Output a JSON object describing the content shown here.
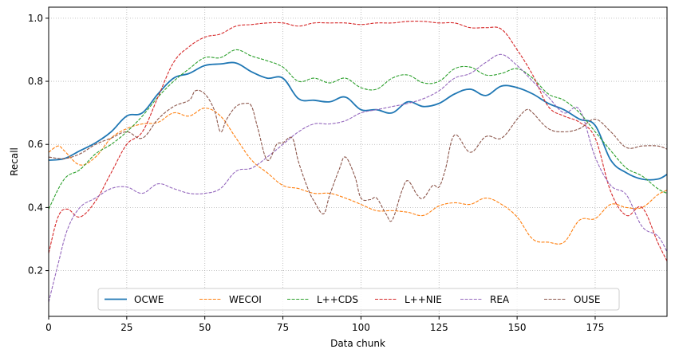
{
  "chart_data": {
    "type": "line",
    "xlabel": "Data chunk",
    "ylabel": "Recall",
    "xlim": [
      0,
      198
    ],
    "ylim": [
      0.055,
      1.035
    ],
    "xticks": [
      0,
      25,
      50,
      75,
      100,
      125,
      150,
      175
    ],
    "yticks": [
      0.2,
      0.4,
      0.6,
      0.8,
      1.0
    ],
    "xtick_labels": [
      "0",
      "25",
      "50",
      "75",
      "100",
      "125",
      "150",
      "175"
    ],
    "ytick_labels": [
      "0.2",
      "0.4",
      "0.6",
      "0.8",
      "1.0"
    ],
    "grid": true,
    "legend_position": "lower center",
    "series": [
      {
        "name": "OCWE",
        "color": "#1f77b4",
        "dash": "solid",
        "x": [
          0,
          5,
          10,
          15,
          20,
          25,
          30,
          35,
          40,
          45,
          50,
          55,
          60,
          65,
          70,
          75,
          80,
          85,
          90,
          95,
          100,
          105,
          110,
          115,
          120,
          125,
          130,
          135,
          140,
          145,
          150,
          155,
          160,
          165,
          170,
          175,
          180,
          185,
          190,
          195,
          198
        ],
        "y": [
          0.55,
          0.555,
          0.58,
          0.605,
          0.64,
          0.69,
          0.7,
          0.76,
          0.81,
          0.825,
          0.85,
          0.855,
          0.858,
          0.83,
          0.81,
          0.81,
          0.745,
          0.74,
          0.735,
          0.75,
          0.71,
          0.71,
          0.7,
          0.735,
          0.72,
          0.73,
          0.76,
          0.775,
          0.755,
          0.785,
          0.78,
          0.76,
          0.73,
          0.71,
          0.68,
          0.66,
          0.55,
          0.51,
          0.49,
          0.49,
          0.505
        ]
      },
      {
        "name": "WECOI",
        "color": "#ff7f0e",
        "dash": "dashed",
        "x": [
          0,
          3,
          5,
          10,
          15,
          20,
          25,
          30,
          35,
          40,
          45,
          50,
          55,
          60,
          65,
          70,
          75,
          80,
          85,
          90,
          95,
          100,
          105,
          110,
          115,
          120,
          125,
          130,
          135,
          140,
          145,
          150,
          155,
          160,
          165,
          170,
          175,
          180,
          185,
          190,
          195,
          198
        ],
        "y": [
          0.575,
          0.595,
          0.58,
          0.535,
          0.56,
          0.62,
          0.65,
          0.665,
          0.67,
          0.7,
          0.69,
          0.715,
          0.69,
          0.62,
          0.55,
          0.51,
          0.47,
          0.46,
          0.445,
          0.445,
          0.43,
          0.41,
          0.39,
          0.39,
          0.385,
          0.375,
          0.405,
          0.415,
          0.41,
          0.43,
          0.41,
          0.37,
          0.3,
          0.29,
          0.29,
          0.36,
          0.365,
          0.41,
          0.4,
          0.4,
          0.44,
          0.455
        ]
      },
      {
        "name": "L++CDS",
        "color": "#2ca02c",
        "dash": "dashed",
        "x": [
          0,
          5,
          10,
          15,
          20,
          25,
          30,
          35,
          40,
          45,
          50,
          55,
          60,
          65,
          70,
          75,
          80,
          85,
          90,
          95,
          100,
          105,
          110,
          115,
          120,
          125,
          130,
          135,
          140,
          145,
          150,
          155,
          160,
          165,
          170,
          175,
          180,
          185,
          190,
          195,
          198
        ],
        "y": [
          0.395,
          0.49,
          0.52,
          0.57,
          0.6,
          0.64,
          0.69,
          0.75,
          0.8,
          0.84,
          0.875,
          0.875,
          0.9,
          0.88,
          0.865,
          0.845,
          0.8,
          0.81,
          0.795,
          0.81,
          0.78,
          0.775,
          0.81,
          0.82,
          0.795,
          0.8,
          0.84,
          0.845,
          0.82,
          0.825,
          0.84,
          0.81,
          0.76,
          0.74,
          0.7,
          0.64,
          0.58,
          0.525,
          0.5,
          0.46,
          0.445
        ]
      },
      {
        "name": "L++NIE",
        "color": "#d62728",
        "dash": "dashed",
        "x": [
          0,
          3,
          6,
          10,
          15,
          20,
          25,
          30,
          35,
          40,
          45,
          50,
          55,
          60,
          65,
          70,
          75,
          80,
          85,
          90,
          95,
          100,
          105,
          110,
          115,
          120,
          125,
          130,
          135,
          140,
          145,
          150,
          155,
          160,
          165,
          170,
          175,
          180,
          185,
          190,
          195,
          198
        ],
        "y": [
          0.255,
          0.37,
          0.395,
          0.37,
          0.42,
          0.51,
          0.6,
          0.64,
          0.75,
          0.86,
          0.91,
          0.94,
          0.95,
          0.975,
          0.98,
          0.985,
          0.985,
          0.975,
          0.985,
          0.985,
          0.985,
          0.98,
          0.985,
          0.985,
          0.99,
          0.99,
          0.985,
          0.985,
          0.97,
          0.97,
          0.965,
          0.9,
          0.82,
          0.72,
          0.69,
          0.67,
          0.62,
          0.45,
          0.375,
          0.4,
          0.29,
          0.23
        ]
      },
      {
        "name": "REA",
        "color": "#9467bd",
        "dash": "dashed",
        "x": [
          0,
          3,
          6,
          10,
          15,
          20,
          25,
          30,
          35,
          40,
          45,
          50,
          55,
          60,
          65,
          70,
          75,
          80,
          85,
          90,
          95,
          100,
          105,
          110,
          115,
          120,
          125,
          130,
          135,
          140,
          145,
          150,
          155,
          160,
          165,
          170,
          175,
          180,
          185,
          190,
          195,
          198
        ],
        "y": [
          0.1,
          0.22,
          0.33,
          0.4,
          0.43,
          0.46,
          0.465,
          0.445,
          0.475,
          0.46,
          0.445,
          0.445,
          0.46,
          0.515,
          0.525,
          0.56,
          0.6,
          0.64,
          0.665,
          0.665,
          0.675,
          0.7,
          0.71,
          0.72,
          0.73,
          0.745,
          0.77,
          0.81,
          0.825,
          0.86,
          0.885,
          0.85,
          0.8,
          0.75,
          0.7,
          0.71,
          0.56,
          0.47,
          0.44,
          0.34,
          0.31,
          0.26
        ]
      },
      {
        "name": "OUSE",
        "color": "#8c564b",
        "dash": "dashed",
        "x": [
          0,
          5,
          10,
          15,
          20,
          25,
          30,
          35,
          40,
          45,
          47,
          50,
          53,
          55,
          57,
          60,
          63,
          65,
          67,
          70,
          73,
          75,
          78,
          80,
          83,
          85,
          88,
          90,
          93,
          95,
          98,
          100,
          103,
          105,
          108,
          110,
          113,
          115,
          118,
          120,
          123,
          125,
          127,
          130,
          135,
          140,
          145,
          150,
          153,
          155,
          160,
          165,
          170,
          175,
          180,
          185,
          190,
          195,
          198
        ],
        "y": [
          0.56,
          0.555,
          0.57,
          0.6,
          0.62,
          0.64,
          0.62,
          0.68,
          0.72,
          0.74,
          0.77,
          0.76,
          0.71,
          0.64,
          0.68,
          0.72,
          0.73,
          0.72,
          0.65,
          0.55,
          0.6,
          0.605,
          0.62,
          0.545,
          0.46,
          0.42,
          0.38,
          0.44,
          0.52,
          0.56,
          0.5,
          0.43,
          0.425,
          0.43,
          0.38,
          0.36,
          0.45,
          0.485,
          0.44,
          0.43,
          0.47,
          0.465,
          0.52,
          0.63,
          0.575,
          0.625,
          0.62,
          0.68,
          0.71,
          0.7,
          0.65,
          0.64,
          0.65,
          0.68,
          0.64,
          0.59,
          0.595,
          0.595,
          0.585
        ]
      }
    ]
  }
}
